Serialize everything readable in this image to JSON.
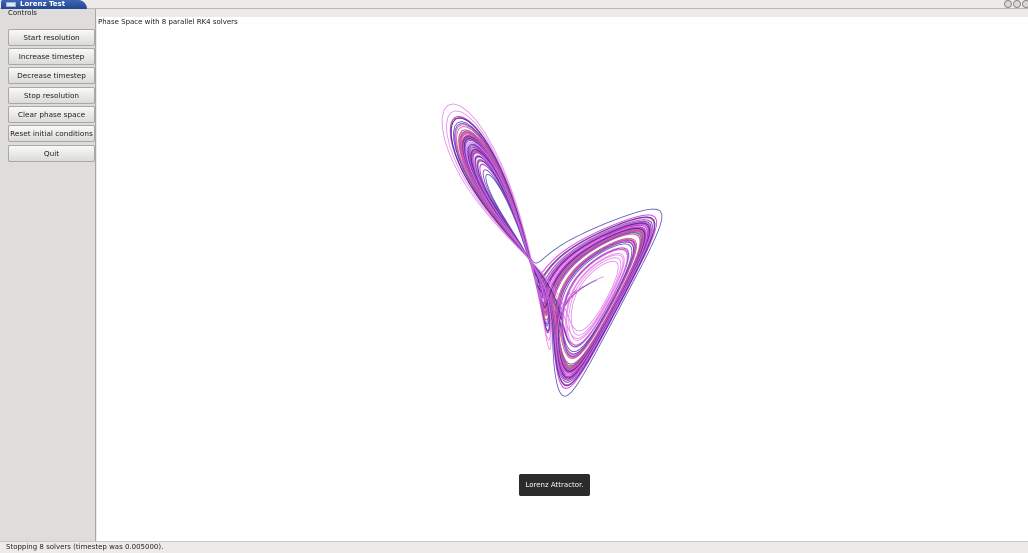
{
  "window": {
    "title": "Lorenz Test"
  },
  "controls": {
    "title": "Controls",
    "buttons": [
      "Start resolution",
      "Increase timestep",
      "Decrease timestep",
      "Stop resolution",
      "Clear phase space",
      "Reset initial conditions",
      "Quit"
    ]
  },
  "canvas": {
    "title": "Phase Space with 8 parallel RK4 solvers",
    "tooltip": "Lorenz Attractor.",
    "curve_colors": [
      "#3333a8",
      "#d020c8",
      "#ee44ee",
      "#b03098",
      "#a0522d",
      "#cc55dd",
      "#2a2a90",
      "#e070ea"
    ]
  },
  "status": {
    "text": "Stopping 8 solvers (timestep was 0.005000)."
  }
}
